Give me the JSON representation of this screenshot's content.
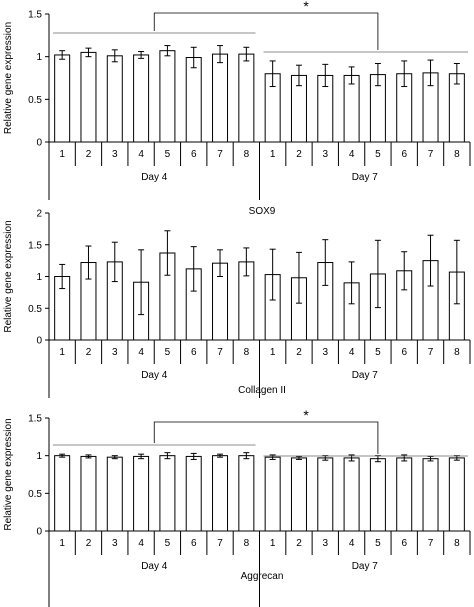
{
  "chart_data": [
    {
      "type": "bar",
      "title": "SOX9",
      "ylabel": "Relative gene expression",
      "ylim": [
        0,
        1.5
      ],
      "yticks": [
        "0",
        "0.5",
        "1",
        "1.5"
      ],
      "categories": [
        "1",
        "2",
        "3",
        "4",
        "5",
        "6",
        "7",
        "8",
        "1",
        "2",
        "3",
        "4",
        "5",
        "6",
        "7",
        "8"
      ],
      "groups": [
        "Day 4",
        "Day 7"
      ],
      "values": [
        1.02,
        1.05,
        1.01,
        1.02,
        1.07,
        0.99,
        1.03,
        1.03,
        0.8,
        0.78,
        0.78,
        0.78,
        0.79,
        0.8,
        0.81,
        0.8
      ],
      "errors": [
        0.05,
        0.05,
        0.07,
        0.04,
        0.06,
        0.12,
        0.1,
        0.08,
        0.15,
        0.12,
        0.13,
        0.1,
        0.13,
        0.15,
        0.15,
        0.12
      ],
      "significance": "*"
    },
    {
      "type": "bar",
      "title": "Collagen II",
      "ylabel": "Relative gene expression",
      "ylim": [
        0,
        2
      ],
      "yticks": [
        "0",
        "0.5",
        "1",
        "1.5",
        "2"
      ],
      "categories": [
        "1",
        "2",
        "3",
        "4",
        "5",
        "6",
        "7",
        "8",
        "1",
        "2",
        "3",
        "4",
        "5",
        "6",
        "7",
        "8"
      ],
      "groups": [
        "Day 4",
        "Day 7"
      ],
      "values": [
        1.0,
        1.22,
        1.23,
        0.91,
        1.37,
        1.12,
        1.21,
        1.23,
        1.03,
        0.98,
        1.22,
        0.9,
        1.04,
        1.09,
        1.25,
        1.07
      ],
      "errors": [
        0.19,
        0.26,
        0.31,
        0.51,
        0.35,
        0.35,
        0.21,
        0.22,
        0.4,
        0.4,
        0.36,
        0.33,
        0.53,
        0.3,
        0.4,
        0.5
      ],
      "significance": ""
    },
    {
      "type": "bar",
      "title": "Aggrecan",
      "ylabel": "Relative gene expression",
      "ylim": [
        0,
        1.5
      ],
      "yticks": [
        "0",
        "0.5",
        "1",
        "1.5"
      ],
      "categories": [
        "1",
        "2",
        "3",
        "4",
        "5",
        "6",
        "7",
        "8",
        "1",
        "2",
        "3",
        "4",
        "5",
        "6",
        "7",
        "8"
      ],
      "groups": [
        "Day 4",
        "Day 7"
      ],
      "values": [
        1.0,
        0.99,
        0.98,
        0.99,
        1.0,
        0.99,
        1.0,
        1.0,
        0.98,
        0.97,
        0.97,
        0.97,
        0.96,
        0.97,
        0.96,
        0.97
      ],
      "errors": [
        0.02,
        0.02,
        0.02,
        0.03,
        0.04,
        0.04,
        0.02,
        0.04,
        0.03,
        0.02,
        0.03,
        0.04,
        0.04,
        0.04,
        0.03,
        0.03
      ],
      "significance": "*"
    }
  ]
}
